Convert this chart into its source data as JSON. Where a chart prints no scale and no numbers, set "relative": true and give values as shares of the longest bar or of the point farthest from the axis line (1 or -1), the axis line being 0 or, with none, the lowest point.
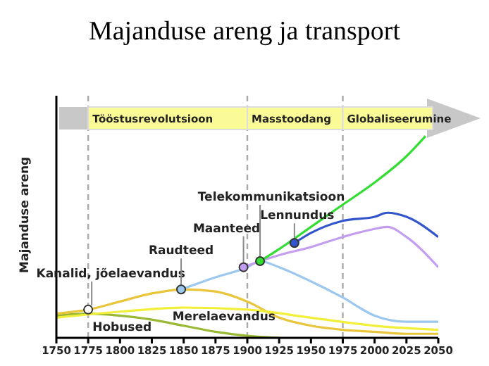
{
  "chart_data": {
    "type": "line",
    "title": "Majanduse areng ja transport",
    "ylabel": "Majanduse areng",
    "relative": true,
    "xlim": [
      1750,
      2050
    ],
    "xticks": [
      1750,
      1775,
      1800,
      1825,
      1850,
      1875,
      1900,
      1925,
      1950,
      1975,
      2000,
      2025,
      2050
    ],
    "marker": "none",
    "line_style": "solid",
    "series": [
      {
        "name": "Hobused",
        "color": "#99b833",
        "x": [
          1750,
          1775,
          1800,
          1825,
          1850,
          1875,
          1900,
          1925
        ],
        "values": [
          0.11,
          0.12,
          0.11,
          0.09,
          0.06,
          0.03,
          0.01,
          0
        ]
      },
      {
        "color": "#e8c53a",
        "x": [
          1750,
          1775,
          1800,
          1825,
          1850,
          1875,
          1900,
          1925,
          1950,
          1975,
          2000,
          2025,
          2050
        ],
        "values": [
          0.12,
          0.14,
          0.18,
          0.22,
          0.24,
          0.23,
          0.18,
          0.1,
          0.06,
          0.04,
          0.03,
          0.02,
          0.02
        ]
      },
      {
        "name": "Merelaevandus",
        "color": "#f2ef3a",
        "x": [
          1750,
          1800,
          1850,
          1900,
          1950,
          2000,
          2050
        ],
        "values": [
          0.1,
          0.13,
          0.15,
          0.14,
          0.1,
          0.06,
          0.04
        ]
      },
      {
        "color": "#9cc8f0",
        "x": [
          1848,
          1875,
          1900,
          1910,
          1925,
          1950,
          1975,
          2000,
          2025,
          2050
        ],
        "values": [
          0.24,
          0.3,
          0.35,
          0.38,
          0.35,
          0.28,
          0.2,
          0.11,
          0.08,
          0.08
        ]
      },
      {
        "color": "#c39ef0",
        "x": [
          1897,
          1910,
          1925,
          1950,
          1975,
          2000,
          2010,
          2025,
          2050
        ],
        "values": [
          0.35,
          0.38,
          0.41,
          0.45,
          0.5,
          0.54,
          0.55,
          0.5,
          0.35
        ]
      },
      {
        "color": "#33dd33",
        "x": [
          1910,
          1925,
          1950,
          1975,
          2000,
          2025,
          2040
        ],
        "values": [
          0.38,
          0.44,
          0.55,
          0.66,
          0.77,
          0.9,
          1
        ]
      },
      {
        "color": "#3355cc",
        "x": [
          1937,
          1950,
          1975,
          2000,
          2010,
          2025,
          2050
        ],
        "values": [
          0.47,
          0.52,
          0.58,
          0.6,
          0.62,
          0.6,
          0.5
        ]
      }
    ],
    "annotations": [
      "Tööstusrevolutsioon",
      "Masstoodang",
      "Globaliseerumine",
      {
        "text": "Kanalid, jõelaevandus",
        "x": 1775,
        "y": 0.14
      },
      {
        "text": "Raudteed",
        "x": 1848,
        "y": 0.24
      },
      {
        "text": "Maanteed",
        "x": 1897,
        "y": 0.35
      },
      {
        "text": "Telekommunikatsioon",
        "x": 1910,
        "y": 0.38
      },
      {
        "text": "Lennundus",
        "x": 1937,
        "y": 0.47
      }
    ],
    "ref_lines": [
      {
        "axis": "x",
        "value": 1775,
        "color": "#aaaaaa",
        "line_style": "dashed"
      },
      {
        "axis": "x",
        "value": 1900,
        "color": "#aaaaaa",
        "line_style": "dashed"
      },
      {
        "axis": "x",
        "value": 1975,
        "color": "#aaaaaa",
        "line_style": "dashed"
      }
    ]
  }
}
